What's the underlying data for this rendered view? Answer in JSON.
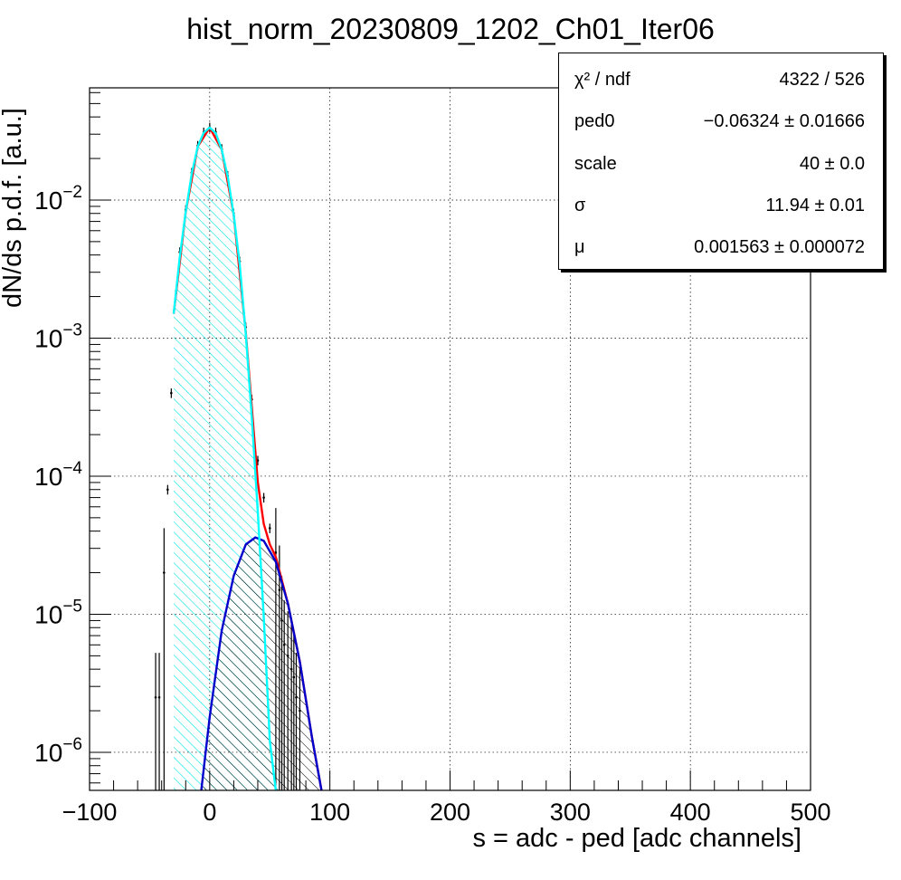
{
  "title": "hist_norm_20230809_1202_Ch01_Iter06",
  "stats": {
    "rows": [
      {
        "key": "χ² / ndf",
        "value": "4322 / 526"
      },
      {
        "key": "ped0",
        "value": "−0.06324  ± 0.01666"
      },
      {
        "key": "scale",
        "value": "40  ± 0.0"
      },
      {
        "key": "σ",
        "value": "11.94  ± 0.01"
      },
      {
        "key": "μ",
        "value": "0.001563  ± 0.000072"
      }
    ]
  },
  "chart_data": {
    "type": "line",
    "title": "hist_norm_20230809_1202_Ch01_Iter06",
    "xlabel": "s = adc - ped [adc channels]",
    "ylabel": "dN/ds p.d.f. [a.u.]",
    "xlim": [
      -100,
      500
    ],
    "ylim": [
      5.3e-07,
      0.065
    ],
    "yscale": "log",
    "grid": true,
    "xticks": [
      "−100",
      "0",
      "100",
      "200",
      "300",
      "400",
      "500"
    ],
    "xtick_values": [
      -100,
      0,
      100,
      200,
      300,
      400,
      500
    ],
    "yticks": [
      {
        "value": 1e-06,
        "base": "10",
        "exp": "−6"
      },
      {
        "value": 1e-05,
        "base": "10",
        "exp": "−5"
      },
      {
        "value": 0.0001,
        "base": "10",
        "exp": "−4"
      },
      {
        "value": 0.001,
        "base": "10",
        "exp": "−3"
      },
      {
        "value": 0.01,
        "base": "10",
        "exp": "−2"
      }
    ],
    "stat_box_location": "top-right",
    "series": [
      {
        "role": "pedestal-component",
        "color": "#00ffff",
        "hatch": true,
        "x": [
          -30,
          -25,
          -20,
          -15,
          -10,
          -5,
          0,
          5,
          10,
          15,
          20,
          25,
          30,
          35,
          40,
          45,
          50,
          55
        ],
        "y": [
          0.0015,
          0.0038,
          0.0082,
          0.0154,
          0.0244,
          0.0307,
          0.0335,
          0.0305,
          0.0232,
          0.0147,
          0.0078,
          0.0034,
          0.00107,
          0.00027,
          5.5e-05,
          9.5e-06,
          1.2e-06,
          5.3e-07
        ]
      },
      {
        "role": "signal-component",
        "color": "#0000cc",
        "hatch": true,
        "x": [
          -7,
          0,
          10,
          20,
          30,
          38,
          45,
          55,
          65,
          75,
          85,
          93
        ],
        "y": [
          5.3e-07,
          1.8e-06,
          7.6e-06,
          1.9e-05,
          3.2e-05,
          3.6e-05,
          3.4e-05,
          2.4e-05,
          1.2e-05,
          4.5e-06,
          1.3e-06,
          5.3e-07
        ]
      },
      {
        "role": "total-fit",
        "color": "#ff0000",
        "x": [
          -30,
          -20,
          -10,
          0,
          10,
          20,
          30,
          40,
          45,
          50,
          55,
          65,
          75,
          85,
          93
        ],
        "y": [
          0.0015,
          0.0082,
          0.0244,
          0.0335,
          0.0232,
          0.0078,
          0.0011,
          9e-05,
          4.5e-05,
          3.2e-05,
          2.6e-05,
          1.2e-05,
          4.5e-06,
          1.3e-06,
          5.3e-07
        ]
      },
      {
        "role": "data-points",
        "color": "#000000",
        "x": [
          -45,
          -42,
          -38,
          -35,
          -32,
          -28,
          -25,
          -20,
          -15,
          -10,
          -5,
          0,
          5,
          10,
          15,
          20,
          25,
          30,
          35,
          40,
          45,
          50,
          55,
          58,
          60,
          62,
          65,
          68,
          70,
          72,
          75
        ],
        "y": [
          2.5e-06,
          2.5e-06,
          2e-05,
          8e-05,
          0.0004,
          0.0022,
          0.0042,
          0.0085,
          0.0158,
          0.0248,
          0.031,
          0.0336,
          0.031,
          0.0235,
          0.015,
          0.008,
          0.0036,
          0.0012,
          0.00036,
          0.00013,
          7e-05,
          4.2e-05,
          2.8e-05,
          1.5e-05,
          9e-06,
          6e-06,
          5e-06,
          4e-06,
          3.5e-06,
          2.5e-06,
          2e-06
        ]
      }
    ]
  }
}
